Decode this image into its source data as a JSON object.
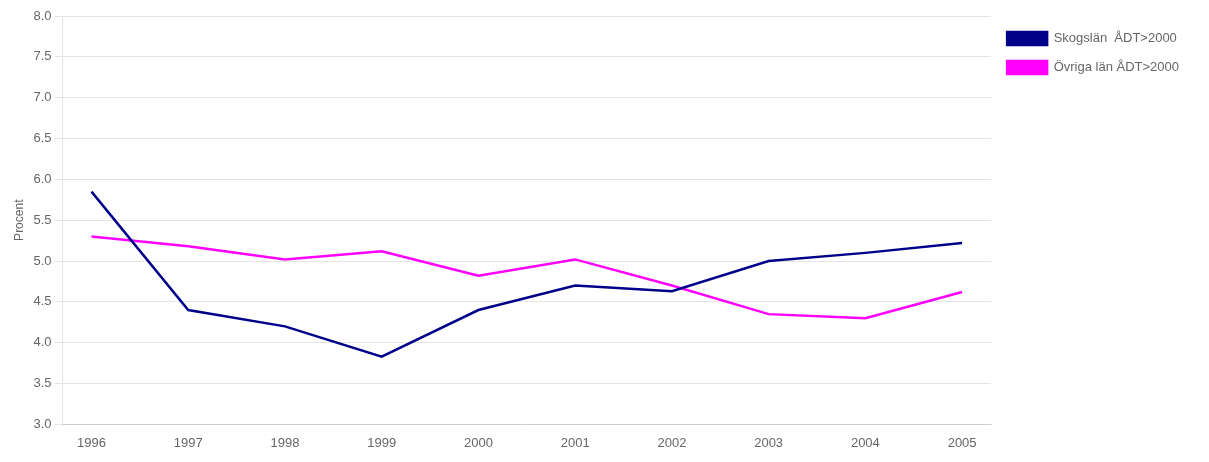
{
  "chart_data": {
    "type": "line",
    "x": [
      1996,
      1997,
      1998,
      1999,
      2000,
      2001,
      2002,
      2003,
      2004,
      2005
    ],
    "series": [
      {
        "name": "Skogslän  ÅDT>2000",
        "color": "#00008B",
        "values": [
          5.85,
          4.4,
          4.2,
          3.83,
          4.4,
          4.7,
          4.63,
          5.0,
          5.1,
          5.22
        ]
      },
      {
        "name": "Övriga län ÅDT>2000",
        "color": "#FF00FF",
        "values": [
          5.3,
          5.18,
          5.02,
          5.12,
          4.82,
          5.02,
          4.7,
          4.35,
          4.3,
          4.62
        ]
      }
    ],
    "ylabel": "Procent",
    "xlim": [
      1995.7,
      2005.3
    ],
    "xticks": [
      1996,
      1997,
      1998,
      1999,
      2000,
      2001,
      2002,
      2003,
      2004,
      2005
    ],
    "ylim": [
      3.0,
      8.0
    ],
    "yticks": [
      {
        "value": 3.0,
        "label": "3.0"
      },
      {
        "value": 3.5,
        "label": "3.5"
      },
      {
        "value": 4.0,
        "label": "4.0"
      },
      {
        "value": 4.5,
        "label": "4.5"
      },
      {
        "value": 5.0,
        "label": "5.0"
      },
      {
        "value": 5.5,
        "label": "5.5"
      },
      {
        "value": 6.0,
        "label": "6.0"
      },
      {
        "value": 6.5,
        "label": "6.5"
      },
      {
        "value": 7.0,
        "label": "7.0"
      },
      {
        "value": 7.5,
        "label": "7.5"
      },
      {
        "value": 8.0,
        "label": "8.0"
      }
    ],
    "grid": "y",
    "legend": "right"
  }
}
